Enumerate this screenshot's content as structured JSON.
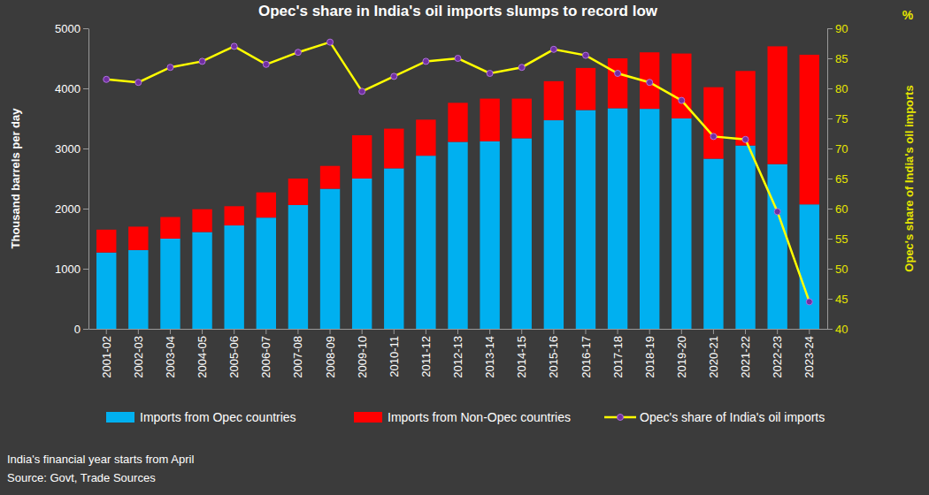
{
  "chart_data": {
    "type": "bar",
    "title": "Opec's share in India's oil imports slumps to record low",
    "y_label": "Thousand barrels per day",
    "y2_label": "Opec's share of India's oil imports",
    "y2_unit": "%",
    "notes": [
      "India's financial year starts from April",
      "Source: Govt, Trade Sources"
    ],
    "categories": [
      "2001-02",
      "2002-03",
      "2003-04",
      "2004-05",
      "2005-06",
      "2006-07",
      "2007-08",
      "2008-09",
      "2009-10",
      "2010-11",
      "2011-12",
      "2012-13",
      "2013-14",
      "2014-15",
      "2015-16",
      "2016-17",
      "2017-18",
      "2018-19",
      "2019-20",
      "2020-21",
      "2021-22",
      "2022-23",
      "2023-24"
    ],
    "stacked": true,
    "legend": "bottom",
    "grid": false,
    "series": [
      {
        "name": "Imports from Opec countries",
        "type": "bar",
        "color": "#00b0f0",
        "values": [
          1270,
          1310,
          1500,
          1610,
          1720,
          1850,
          2060,
          2330,
          2500,
          2670,
          2880,
          3110,
          3120,
          3170,
          3470,
          3640,
          3670,
          3660,
          3500,
          2830,
          3050,
          2740,
          2070
        ]
      },
      {
        "name": "Imports from Non-Opec countries",
        "type": "bar",
        "color": "#ff0000",
        "values": [
          380,
          390,
          360,
          380,
          320,
          420,
          440,
          380,
          720,
          660,
          600,
          650,
          710,
          660,
          650,
          700,
          830,
          940,
          1080,
          1190,
          1240,
          1960,
          2490
        ]
      },
      {
        "name": "Opec's share of India's oil imports",
        "type": "line",
        "axis": "y2",
        "color": "#ffff00",
        "marker": "circle",
        "values": [
          81.5,
          81,
          83.5,
          84.5,
          87,
          84,
          86,
          87.7,
          79.5,
          82,
          84.5,
          85,
          82.5,
          83.5,
          86.5,
          85.5,
          82.5,
          81,
          78,
          72,
          71.5,
          59.5,
          44.5
        ]
      }
    ],
    "ylim": [
      0,
      5000
    ],
    "yticks": [
      0,
      1000,
      2000,
      3000,
      4000,
      5000
    ],
    "y2lim": [
      40,
      90
    ],
    "y2ticks": [
      40,
      45,
      50,
      55,
      60,
      65,
      70,
      75,
      80,
      85,
      90
    ]
  }
}
